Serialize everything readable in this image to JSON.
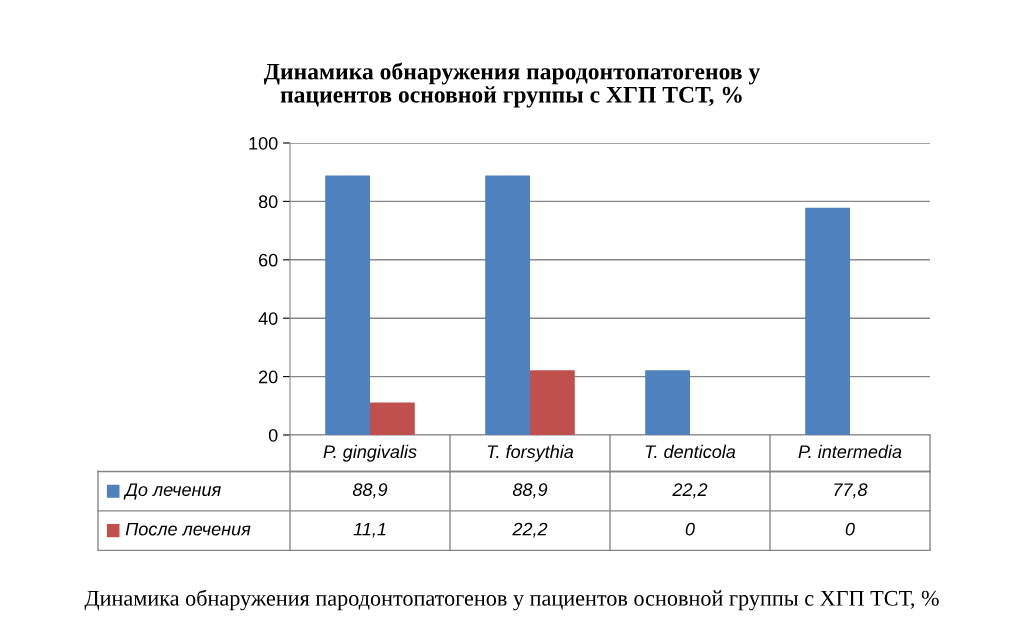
{
  "chart_data": {
    "type": "bar",
    "title": "Динамика обнаружения пародонтопатогенов у\nпациентов основной группы с ХГП ТСТ, %",
    "categories": [
      "P. gingivalis",
      "T. forsythia",
      "T. denticola",
      "P. intermedia"
    ],
    "series": [
      {
        "name": "До лечения",
        "color": "#4f81bd",
        "values": [
          88.9,
          88.9,
          22.2,
          77.8
        ],
        "value_labels": [
          "88,9",
          "88,9",
          "22,2",
          "77,8"
        ]
      },
      {
        "name": "После лечения",
        "color": "#c0504d",
        "values": [
          11.1,
          22.2,
          0,
          0
        ],
        "value_labels": [
          "11,1",
          "22,2",
          "0",
          "0"
        ]
      }
    ],
    "ylim": [
      0,
      100
    ],
    "yticks": [
      0,
      20,
      40,
      60,
      80,
      100
    ],
    "grid": "y",
    "legend": "bottom left",
    "annotations": [
      "Динамика обнаружения пародонтопатогенов у пациентов основной группы с ХГП ТСТ, %"
    ]
  }
}
